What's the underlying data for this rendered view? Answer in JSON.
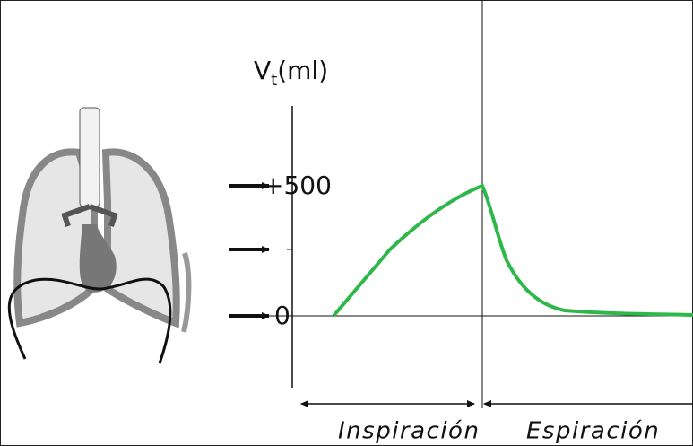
{
  "y_axis": {
    "symbol": "V",
    "subscript": "t",
    "unit": "(ml)",
    "ticks": [
      "+500",
      "0"
    ]
  },
  "phases": [
    "Inspiración",
    "Espiración"
  ]
}
